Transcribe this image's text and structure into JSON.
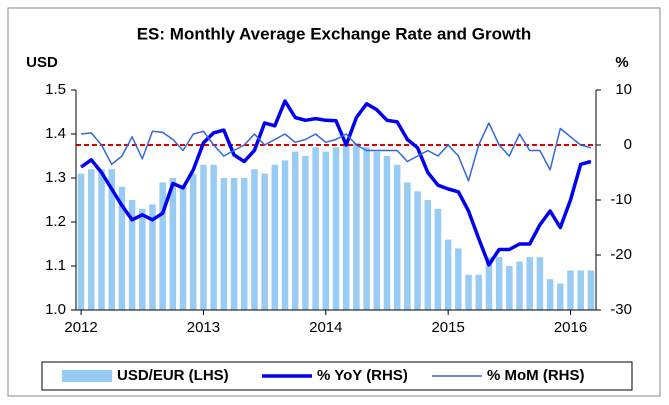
{
  "chart_data": {
    "type": "combo",
    "title": "ES: Monthly Average Exchange Rate and Growth",
    "y_label": "USD",
    "y2_label": "%",
    "categories": [
      "2012",
      null,
      null,
      null,
      null,
      null,
      null,
      null,
      null,
      null,
      null,
      null,
      "2013",
      null,
      null,
      null,
      null,
      null,
      null,
      null,
      null,
      null,
      null,
      null,
      "2014",
      null,
      null,
      null,
      null,
      null,
      null,
      null,
      null,
      null,
      null,
      null,
      "2015",
      null,
      null,
      null,
      null,
      null,
      null,
      null,
      null,
      null,
      null,
      null,
      "2016",
      null,
      null
    ],
    "series": [
      {
        "name": "USD/EUR (LHS)",
        "type": "bar",
        "axis": "y",
        "color": "#99ccf5",
        "values": [
          1.31,
          1.32,
          1.32,
          1.32,
          1.28,
          1.25,
          1.23,
          1.24,
          1.29,
          1.3,
          1.28,
          1.31,
          1.33,
          1.33,
          1.3,
          1.3,
          1.3,
          1.32,
          1.31,
          1.33,
          1.34,
          1.36,
          1.35,
          1.37,
          1.36,
          1.37,
          1.38,
          1.38,
          1.37,
          1.36,
          1.35,
          1.33,
          1.29,
          1.27,
          1.25,
          1.23,
          1.16,
          1.14,
          1.08,
          1.08,
          1.12,
          1.12,
          1.1,
          1.11,
          1.12,
          1.12,
          1.07,
          1.06,
          1.09,
          1.09,
          1.09
        ]
      },
      {
        "name": "% YoY (RHS)",
        "type": "line",
        "axis": "y2",
        "color": "#0000ee",
        "width": 3.5,
        "values": [
          -4,
          -2.7,
          -5,
          -8,
          -11,
          -13.6,
          -12.7,
          -13.6,
          -12.4,
          -7,
          -7.8,
          -4.5,
          0.4,
          2.2,
          2.7,
          -1.8,
          -3,
          -1,
          4,
          3.5,
          8,
          5,
          4.5,
          4.8,
          4.5,
          4.4,
          0,
          5,
          7.5,
          6.4,
          4.5,
          4.2,
          1,
          -0.5,
          -5,
          -7.3,
          -8,
          -8.5,
          -12,
          -17,
          -21.8,
          -19,
          -19,
          -18,
          -18,
          -14.5,
          -12,
          -15,
          -10,
          -3.5,
          -3
        ]
      },
      {
        "name": "% MoM (RHS)",
        "type": "line",
        "axis": "y2",
        "color": "#3366dd",
        "width": 1.5,
        "values": [
          2,
          2.2,
          0,
          -3.5,
          -2,
          1.5,
          -2.5,
          2.5,
          2.3,
          1,
          -1,
          2,
          2.5,
          0,
          -2,
          -1,
          0,
          2,
          0,
          1,
          2,
          0.5,
          1,
          2,
          0.5,
          1,
          2,
          0,
          -1,
          -1,
          -1,
          -1,
          -3,
          -2,
          -1,
          -2,
          0,
          -2,
          -6.5,
          0,
          4,
          0,
          -2,
          2,
          -1,
          -1,
          -4.5,
          3,
          1.5,
          0,
          -0.5
        ]
      }
    ],
    "ylim": [
      1.0,
      1.5
    ],
    "yticks": [
      {
        "value": 1.0,
        "label": "1.0"
      },
      1.1,
      1.2,
      1.3,
      1.4,
      1.5
    ],
    "y2lim": [
      -30,
      10
    ],
    "y2ticks": [
      -30,
      -20,
      -10,
      0,
      10
    ],
    "reference_line": {
      "value": 0,
      "axis": "y2",
      "color": "#dd0000"
    },
    "legend": "bottom"
  }
}
